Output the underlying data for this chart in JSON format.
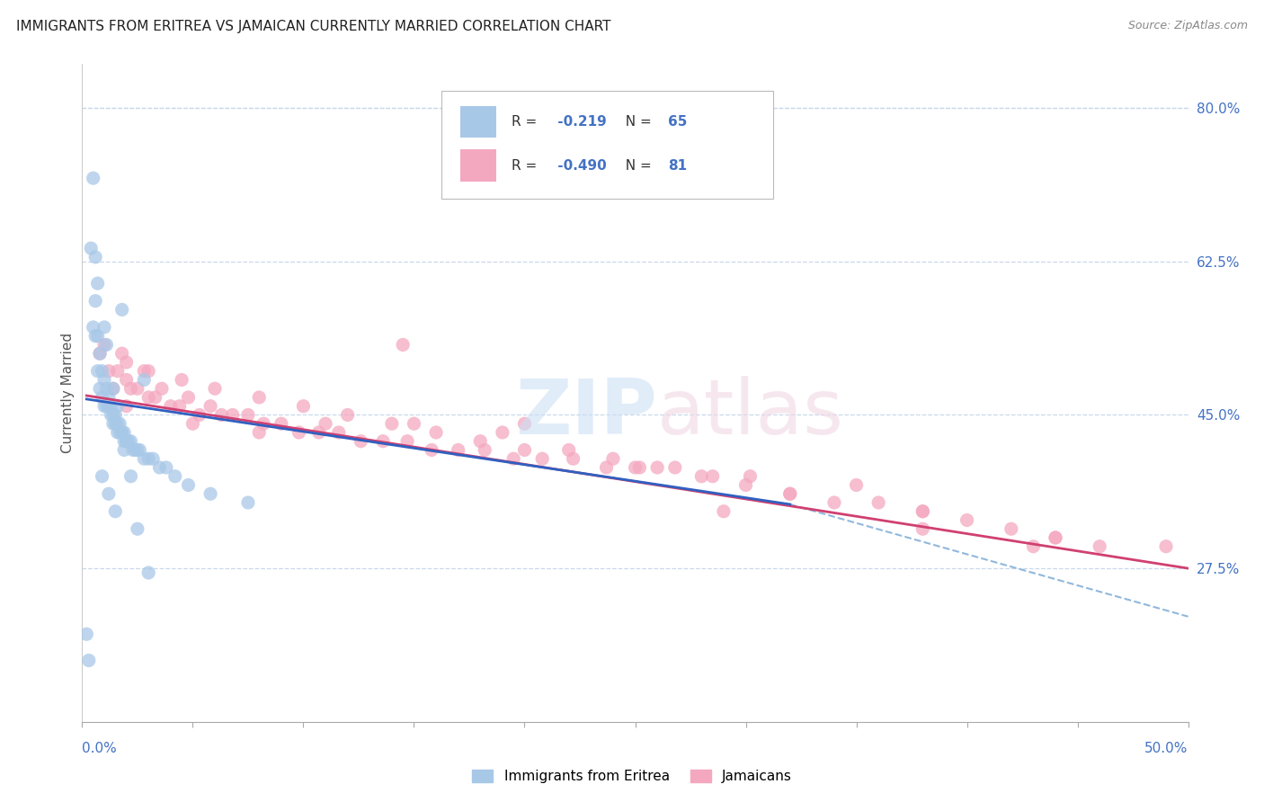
{
  "title": "IMMIGRANTS FROM ERITREA VS JAMAICAN CURRENTLY MARRIED CORRELATION CHART",
  "source": "Source: ZipAtlas.com",
  "ylabel": "Currently Married",
  "right_ytick_vals": [
    0.275,
    0.45,
    0.625,
    0.8
  ],
  "right_ytick_labels": [
    "27.5%",
    "45.0%",
    "62.5%",
    "80.0%"
  ],
  "legend_labels": [
    "Immigrants from Eritrea",
    "Jamaicans"
  ],
  "legend_r": [
    "-0.219",
    "-0.490"
  ],
  "legend_n": [
    "65",
    "81"
  ],
  "blue_color": "#a8c8e8",
  "pink_color": "#f4a8c0",
  "blue_line_color": "#3060c0",
  "pink_line_color": "#d04070",
  "dashed_line_color": "#90b8dc",
  "xmin": 0.0,
  "xmax": 0.5,
  "ymin": 0.1,
  "ymax": 0.85,
  "blue_scatter_x": [
    0.002,
    0.003,
    0.004,
    0.005,
    0.005,
    0.006,
    0.006,
    0.007,
    0.007,
    0.008,
    0.008,
    0.009,
    0.009,
    0.01,
    0.01,
    0.011,
    0.011,
    0.012,
    0.012,
    0.013,
    0.013,
    0.014,
    0.014,
    0.015,
    0.015,
    0.016,
    0.016,
    0.017,
    0.017,
    0.018,
    0.018,
    0.019,
    0.019,
    0.02,
    0.02,
    0.021,
    0.022,
    0.023,
    0.024,
    0.025,
    0.026,
    0.028,
    0.03,
    0.032,
    0.035,
    0.038,
    0.042,
    0.048,
    0.058,
    0.075,
    0.006,
    0.018,
    0.028,
    0.009,
    0.012,
    0.015,
    0.025,
    0.01,
    0.014,
    0.019,
    0.007,
    0.011,
    0.016,
    0.022,
    0.03
  ],
  "blue_scatter_y": [
    0.2,
    0.17,
    0.64,
    0.72,
    0.55,
    0.58,
    0.54,
    0.54,
    0.5,
    0.52,
    0.48,
    0.5,
    0.47,
    0.49,
    0.46,
    0.48,
    0.46,
    0.47,
    0.46,
    0.46,
    0.45,
    0.45,
    0.44,
    0.45,
    0.44,
    0.44,
    0.43,
    0.44,
    0.43,
    0.43,
    0.43,
    0.43,
    0.42,
    0.42,
    0.42,
    0.42,
    0.42,
    0.41,
    0.41,
    0.41,
    0.41,
    0.4,
    0.4,
    0.4,
    0.39,
    0.39,
    0.38,
    0.37,
    0.36,
    0.35,
    0.63,
    0.57,
    0.49,
    0.38,
    0.36,
    0.34,
    0.32,
    0.55,
    0.48,
    0.41,
    0.6,
    0.53,
    0.46,
    0.38,
    0.27
  ],
  "pink_scatter_x": [
    0.008,
    0.01,
    0.012,
    0.014,
    0.016,
    0.018,
    0.02,
    0.022,
    0.025,
    0.028,
    0.03,
    0.033,
    0.036,
    0.04,
    0.044,
    0.048,
    0.053,
    0.058,
    0.063,
    0.068,
    0.075,
    0.082,
    0.09,
    0.098,
    0.107,
    0.116,
    0.126,
    0.136,
    0.147,
    0.158,
    0.17,
    0.182,
    0.195,
    0.208,
    0.222,
    0.237,
    0.252,
    0.268,
    0.285,
    0.302,
    0.02,
    0.03,
    0.045,
    0.06,
    0.08,
    0.1,
    0.12,
    0.14,
    0.16,
    0.18,
    0.2,
    0.22,
    0.24,
    0.26,
    0.28,
    0.3,
    0.32,
    0.34,
    0.36,
    0.38,
    0.4,
    0.42,
    0.44,
    0.46,
    0.02,
    0.05,
    0.08,
    0.11,
    0.15,
    0.19,
    0.25,
    0.32,
    0.38,
    0.44,
    0.49,
    0.29,
    0.35,
    0.2,
    0.38,
    0.43,
    0.145
  ],
  "pink_scatter_y": [
    0.52,
    0.53,
    0.5,
    0.48,
    0.5,
    0.52,
    0.49,
    0.48,
    0.48,
    0.5,
    0.47,
    0.47,
    0.48,
    0.46,
    0.46,
    0.47,
    0.45,
    0.46,
    0.45,
    0.45,
    0.45,
    0.44,
    0.44,
    0.43,
    0.43,
    0.43,
    0.42,
    0.42,
    0.42,
    0.41,
    0.41,
    0.41,
    0.4,
    0.4,
    0.4,
    0.39,
    0.39,
    0.39,
    0.38,
    0.38,
    0.51,
    0.5,
    0.49,
    0.48,
    0.47,
    0.46,
    0.45,
    0.44,
    0.43,
    0.42,
    0.41,
    0.41,
    0.4,
    0.39,
    0.38,
    0.37,
    0.36,
    0.35,
    0.35,
    0.34,
    0.33,
    0.32,
    0.31,
    0.3,
    0.46,
    0.44,
    0.43,
    0.44,
    0.44,
    0.43,
    0.39,
    0.36,
    0.34,
    0.31,
    0.3,
    0.34,
    0.37,
    0.44,
    0.32,
    0.3,
    0.53
  ],
  "blue_line_x": [
    0.002,
    0.32
  ],
  "blue_line_y": [
    0.468,
    0.348
  ],
  "pink_line_x": [
    0.002,
    0.5
  ],
  "pink_line_y": [
    0.472,
    0.275
  ],
  "dashed_line_x": [
    0.32,
    0.5
  ],
  "dashed_line_y": [
    0.348,
    0.22
  ]
}
